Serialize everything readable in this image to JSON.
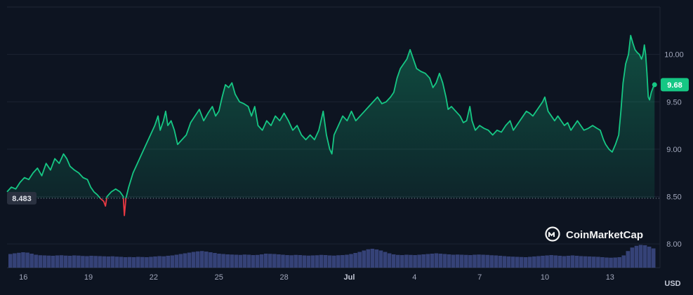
{
  "chart_data": {
    "type": "area",
    "currency_label": "USD",
    "watermark": "CoinMarketCap",
    "x_tick_labels": [
      "16",
      "19",
      "22",
      "25",
      "28",
      "Jul",
      "4",
      "7",
      "10",
      "13"
    ],
    "x_tick_index": [
      0,
      3,
      6,
      9,
      12,
      15,
      18,
      21,
      24,
      27
    ],
    "y_tick_labels": [
      "10.00",
      "9.50",
      "9.00",
      "8.50",
      "8.00"
    ],
    "y_tick_values": [
      10.0,
      9.5,
      9.0,
      8.5,
      8.0
    ],
    "ylim": [
      7.75,
      10.5
    ],
    "xlim": [
      -0.75,
      29.3
    ],
    "reference_value": 8.483,
    "reference_label": "8.483",
    "last_value": 9.68,
    "last_label": "9.68",
    "colors": {
      "up": "#16c784",
      "down": "#ea3943",
      "volume": "#3d4a86",
      "background": "#0d1421"
    },
    "series": [
      {
        "values": [
          [
            -0.75,
            8.55
          ],
          [
            -0.55,
            8.6
          ],
          [
            -0.35,
            8.58
          ],
          [
            -0.15,
            8.65
          ],
          [
            0.05,
            8.7
          ],
          [
            0.25,
            8.68
          ],
          [
            0.45,
            8.75
          ],
          [
            0.65,
            8.8
          ],
          [
            0.85,
            8.72
          ],
          [
            1.05,
            8.85
          ],
          [
            1.25,
            8.78
          ],
          [
            1.45,
            8.9
          ],
          [
            1.65,
            8.85
          ],
          [
            1.85,
            8.95
          ],
          [
            2.0,
            8.9
          ],
          [
            2.15,
            8.82
          ],
          [
            2.35,
            8.78
          ],
          [
            2.55,
            8.75
          ],
          [
            2.75,
            8.7
          ],
          [
            2.95,
            8.68
          ],
          [
            3.1,
            8.6
          ],
          [
            3.25,
            8.55
          ],
          [
            3.4,
            8.52
          ],
          [
            3.55,
            8.48
          ],
          [
            3.7,
            8.45
          ],
          [
            3.78,
            8.4
          ],
          [
            3.85,
            8.5
          ],
          [
            4.05,
            8.55
          ],
          [
            4.25,
            8.58
          ],
          [
            4.45,
            8.55
          ],
          [
            4.6,
            8.5
          ],
          [
            4.65,
            8.3
          ],
          [
            4.72,
            8.48
          ],
          [
            4.85,
            8.6
          ],
          [
            5.05,
            8.75
          ],
          [
            5.25,
            8.85
          ],
          [
            5.45,
            8.95
          ],
          [
            5.65,
            9.05
          ],
          [
            5.85,
            9.15
          ],
          [
            6.05,
            9.25
          ],
          [
            6.2,
            9.35
          ],
          [
            6.3,
            9.2
          ],
          [
            6.45,
            9.3
          ],
          [
            6.55,
            9.4
          ],
          [
            6.65,
            9.25
          ],
          [
            6.8,
            9.3
          ],
          [
            6.95,
            9.2
          ],
          [
            7.1,
            9.05
          ],
          [
            7.3,
            9.1
          ],
          [
            7.5,
            9.15
          ],
          [
            7.7,
            9.28
          ],
          [
            7.9,
            9.35
          ],
          [
            8.1,
            9.42
          ],
          [
            8.3,
            9.3
          ],
          [
            8.5,
            9.38
          ],
          [
            8.7,
            9.45
          ],
          [
            8.85,
            9.35
          ],
          [
            9.0,
            9.4
          ],
          [
            9.15,
            9.55
          ],
          [
            9.3,
            9.68
          ],
          [
            9.45,
            9.65
          ],
          [
            9.6,
            9.7
          ],
          [
            9.75,
            9.58
          ],
          [
            9.95,
            9.5
          ],
          [
            10.15,
            9.48
          ],
          [
            10.35,
            9.45
          ],
          [
            10.5,
            9.35
          ],
          [
            10.65,
            9.45
          ],
          [
            10.8,
            9.25
          ],
          [
            11.0,
            9.2
          ],
          [
            11.2,
            9.3
          ],
          [
            11.4,
            9.25
          ],
          [
            11.6,
            9.35
          ],
          [
            11.8,
            9.3
          ],
          [
            12.0,
            9.38
          ],
          [
            12.2,
            9.3
          ],
          [
            12.4,
            9.2
          ],
          [
            12.6,
            9.25
          ],
          [
            12.8,
            9.15
          ],
          [
            13.0,
            9.1
          ],
          [
            13.2,
            9.15
          ],
          [
            13.4,
            9.1
          ],
          [
            13.6,
            9.2
          ],
          [
            13.8,
            9.4
          ],
          [
            13.95,
            9.15
          ],
          [
            14.1,
            9.0
          ],
          [
            14.2,
            8.95
          ],
          [
            14.3,
            9.15
          ],
          [
            14.5,
            9.25
          ],
          [
            14.7,
            9.35
          ],
          [
            14.9,
            9.3
          ],
          [
            15.1,
            9.4
          ],
          [
            15.3,
            9.3
          ],
          [
            15.5,
            9.35
          ],
          [
            15.7,
            9.4
          ],
          [
            15.9,
            9.45
          ],
          [
            16.1,
            9.5
          ],
          [
            16.3,
            9.55
          ],
          [
            16.5,
            9.48
          ],
          [
            16.7,
            9.5
          ],
          [
            16.9,
            9.55
          ],
          [
            17.05,
            9.6
          ],
          [
            17.2,
            9.75
          ],
          [
            17.35,
            9.85
          ],
          [
            17.5,
            9.9
          ],
          [
            17.65,
            9.95
          ],
          [
            17.8,
            10.05
          ],
          [
            17.95,
            9.95
          ],
          [
            18.1,
            9.85
          ],
          [
            18.3,
            9.82
          ],
          [
            18.5,
            9.8
          ],
          [
            18.7,
            9.75
          ],
          [
            18.85,
            9.65
          ],
          [
            19.0,
            9.7
          ],
          [
            19.15,
            9.8
          ],
          [
            19.3,
            9.7
          ],
          [
            19.45,
            9.55
          ],
          [
            19.55,
            9.42
          ],
          [
            19.7,
            9.45
          ],
          [
            19.9,
            9.4
          ],
          [
            20.1,
            9.35
          ],
          [
            20.25,
            9.28
          ],
          [
            20.4,
            9.3
          ],
          [
            20.55,
            9.45
          ],
          [
            20.65,
            9.3
          ],
          [
            20.8,
            9.2
          ],
          [
            21.0,
            9.25
          ],
          [
            21.2,
            9.22
          ],
          [
            21.4,
            9.2
          ],
          [
            21.6,
            9.15
          ],
          [
            21.8,
            9.2
          ],
          [
            22.0,
            9.18
          ],
          [
            22.2,
            9.25
          ],
          [
            22.4,
            9.3
          ],
          [
            22.55,
            9.2
          ],
          [
            22.7,
            9.25
          ],
          [
            22.85,
            9.3
          ],
          [
            23.0,
            9.35
          ],
          [
            23.15,
            9.4
          ],
          [
            23.3,
            9.38
          ],
          [
            23.45,
            9.35
          ],
          [
            23.6,
            9.4
          ],
          [
            23.75,
            9.45
          ],
          [
            23.9,
            9.5
          ],
          [
            24.0,
            9.55
          ],
          [
            24.15,
            9.4
          ],
          [
            24.3,
            9.35
          ],
          [
            24.45,
            9.3
          ],
          [
            24.6,
            9.35
          ],
          [
            24.75,
            9.3
          ],
          [
            24.9,
            9.25
          ],
          [
            25.05,
            9.28
          ],
          [
            25.2,
            9.2
          ],
          [
            25.35,
            9.25
          ],
          [
            25.5,
            9.3
          ],
          [
            25.65,
            9.25
          ],
          [
            25.8,
            9.2
          ],
          [
            26.0,
            9.22
          ],
          [
            26.2,
            9.25
          ],
          [
            26.4,
            9.22
          ],
          [
            26.55,
            9.2
          ],
          [
            26.7,
            9.1
          ],
          [
            26.8,
            9.05
          ],
          [
            26.95,
            9.0
          ],
          [
            27.1,
            8.97
          ],
          [
            27.25,
            9.05
          ],
          [
            27.4,
            9.15
          ],
          [
            27.5,
            9.4
          ],
          [
            27.6,
            9.7
          ],
          [
            27.72,
            9.9
          ],
          [
            27.85,
            10.0
          ],
          [
            27.95,
            10.2
          ],
          [
            28.05,
            10.12
          ],
          [
            28.15,
            10.05
          ],
          [
            28.25,
            10.02
          ],
          [
            28.35,
            10.0
          ],
          [
            28.45,
            9.95
          ],
          [
            28.52,
            10.0
          ],
          [
            28.58,
            10.1
          ],
          [
            28.64,
            10.0
          ],
          [
            28.7,
            9.8
          ],
          [
            28.76,
            9.55
          ],
          [
            28.82,
            9.52
          ],
          [
            28.9,
            9.6
          ],
          [
            28.98,
            9.65
          ],
          [
            29.05,
            9.68
          ]
        ]
      }
    ],
    "volume": [
      0.78,
      0.82,
      0.85,
      0.88,
      0.86,
      0.8,
      0.74,
      0.71,
      0.7,
      0.69,
      0.68,
      0.7,
      0.71,
      0.69,
      0.68,
      0.7,
      0.69,
      0.67,
      0.66,
      0.68,
      0.67,
      0.66,
      0.65,
      0.64,
      0.65,
      0.63,
      0.62,
      0.6,
      0.61,
      0.6,
      0.62,
      0.61,
      0.6,
      0.62,
      0.64,
      0.66,
      0.65,
      0.68,
      0.7,
      0.74,
      0.78,
      0.82,
      0.86,
      0.9,
      0.93,
      0.95,
      0.92,
      0.88,
      0.84,
      0.8,
      0.78,
      0.76,
      0.75,
      0.74,
      0.73,
      0.75,
      0.74,
      0.72,
      0.73,
      0.76,
      0.8,
      0.79,
      0.78,
      0.76,
      0.74,
      0.72,
      0.71,
      0.73,
      0.72,
      0.7,
      0.69,
      0.7,
      0.71,
      0.73,
      0.72,
      0.7,
      0.69,
      0.71,
      0.72,
      0.74,
      0.78,
      0.84,
      0.9,
      0.98,
      1.05,
      1.08,
      1.04,
      0.98,
      0.9,
      0.82,
      0.76,
      0.73,
      0.72,
      0.74,
      0.73,
      0.72,
      0.74,
      0.76,
      0.78,
      0.8,
      0.82,
      0.8,
      0.78,
      0.76,
      0.74,
      0.75,
      0.74,
      0.73,
      0.72,
      0.74,
      0.75,
      0.74,
      0.73,
      0.71,
      0.7,
      0.68,
      0.66,
      0.64,
      0.63,
      0.62,
      0.61,
      0.6,
      0.62,
      0.64,
      0.66,
      0.68,
      0.7,
      0.72,
      0.7,
      0.68,
      0.66,
      0.68,
      0.7,
      0.68,
      0.66,
      0.65,
      0.64,
      0.63,
      0.62,
      0.6,
      0.58,
      0.57,
      0.58,
      0.6,
      0.7,
      0.95,
      1.15,
      1.25,
      1.3,
      1.28,
      1.2,
      1.1
    ]
  }
}
